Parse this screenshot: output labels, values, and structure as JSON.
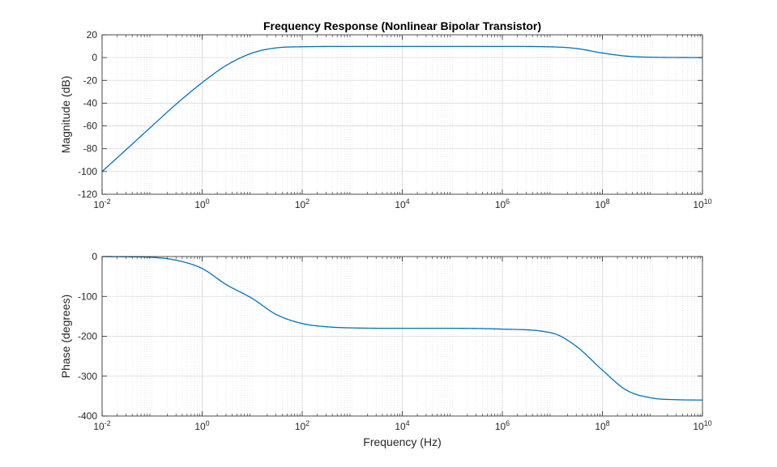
{
  "chart_data": [
    {
      "type": "line",
      "title": "Frequency Response (Nonlinear Bipolar Transistor)",
      "xlabel": "",
      "ylabel": "Magnitude (dB)",
      "xscale": "log",
      "xlim": [
        0.01,
        10000000000
      ],
      "ylim": [
        -120,
        20
      ],
      "grid": true,
      "minor_grid": true,
      "line_color": "#0072BD",
      "x_ticks": [
        {
          "base": "10",
          "exp": "-2"
        },
        {
          "base": "10",
          "exp": "0"
        },
        {
          "base": "10",
          "exp": "2"
        },
        {
          "base": "10",
          "exp": "4"
        },
        {
          "base": "10",
          "exp": "6"
        },
        {
          "base": "10",
          "exp": "8"
        },
        {
          "base": "10",
          "exp": "10"
        }
      ],
      "y_ticks": [
        "20",
        "0",
        "-20",
        "-40",
        "-60",
        "-80",
        "-100",
        "-120"
      ],
      "series": [
        {
          "x": [
            0.01,
            0.03,
            0.1,
            0.3,
            1,
            3,
            10,
            30,
            100,
            1000,
            10000,
            100000,
            1000000,
            10000000,
            30000000,
            100000000,
            300000000,
            1000000000,
            10000000000
          ],
          "values": [
            -100,
            -81,
            -60,
            -41,
            -22,
            -7,
            4,
            8.5,
            9.5,
            9.8,
            9.8,
            9.8,
            9.8,
            9.4,
            8.0,
            4.0,
            1.3,
            0.3,
            0
          ]
        }
      ]
    },
    {
      "type": "line",
      "title": "",
      "xlabel": "Frequency (Hz)",
      "ylabel": "Phase (degrees)",
      "xscale": "log",
      "xlim": [
        0.01,
        10000000000
      ],
      "ylim": [
        -400,
        0
      ],
      "grid": true,
      "minor_grid": true,
      "line_color": "#0072BD",
      "x_ticks": [
        {
          "base": "10",
          "exp": "-2"
        },
        {
          "base": "10",
          "exp": "0"
        },
        {
          "base": "10",
          "exp": "2"
        },
        {
          "base": "10",
          "exp": "4"
        },
        {
          "base": "10",
          "exp": "6"
        },
        {
          "base": "10",
          "exp": "8"
        },
        {
          "base": "10",
          "exp": "10"
        }
      ],
      "y_ticks": [
        "0",
        "-100",
        "-200",
        "-300",
        "-400"
      ],
      "series": [
        {
          "x": [
            0.01,
            0.03,
            0.1,
            0.3,
            1,
            3,
            10,
            30,
            100,
            300,
            1000,
            10000,
            100000,
            1000000,
            10000000,
            30000000,
            100000000,
            300000000,
            1000000000,
            3000000000,
            10000000000
          ],
          "values": [
            0,
            -0.5,
            -2,
            -9,
            -30,
            -70,
            -105,
            -145,
            -168,
            -176,
            -179,
            -180,
            -180,
            -182,
            -192,
            -225,
            -285,
            -335,
            -355,
            -359,
            -360
          ]
        }
      ]
    }
  ]
}
